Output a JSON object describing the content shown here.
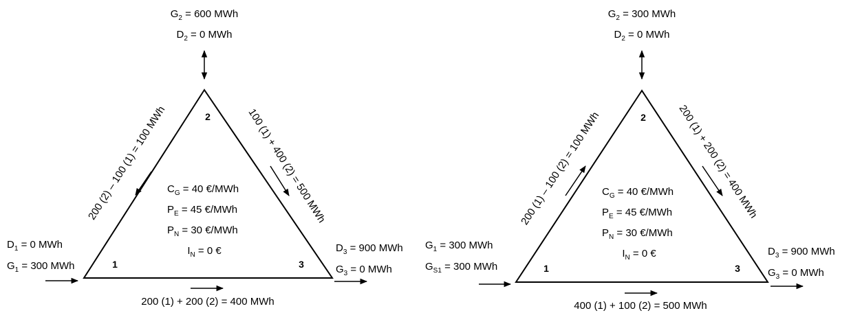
{
  "diagrams": [
    {
      "node2_top": {
        "g_main": "G",
        "g_sub": "2",
        "g_rest": " = 600 MWh",
        "d_main": "D",
        "d_sub": "2",
        "d_rest": " = 0 MWh"
      },
      "node1_left": {
        "l1_main": "D",
        "l1_sub": "1",
        "l1_rest": " = 0 MWh",
        "l2_main": "G",
        "l2_sub": "1",
        "l2_rest": " = 300 MWh"
      },
      "node3_right": {
        "l1_main": "D",
        "l1_sub": "3",
        "l1_rest": " = 900 MWh",
        "l2_main": "G",
        "l2_sub": "3",
        "l2_rest": " = 0 MWh"
      },
      "nodes": {
        "n1": "1",
        "n2": "2",
        "n3": "3"
      },
      "edge_left": "200 (2) – 100 (1) = 100 MWh",
      "edge_right": "100 (1) + 400 (2) = 500 MWh",
      "edge_bottom": "200 (1) + 200 (2) = 400 MWh",
      "center": {
        "cg_main": "C",
        "cg_sub": "G",
        "cg_rest": " = 40 €/MWh",
        "pe_main": "P",
        "pe_sub": "E",
        "pe_rest": " = 45 €/MWh",
        "pn_main": "P",
        "pn_sub": "N",
        "pn_rest": " = 30 €/MWh",
        "in_main": "I",
        "in_sub": "N",
        "in_rest": " = 0 €"
      }
    },
    {
      "node2_top": {
        "g_main": "G",
        "g_sub": "2",
        "g_rest": " = 300 MWh",
        "d_main": "D",
        "d_sub": "2",
        "d_rest": " = 0 MWh"
      },
      "node1_left": {
        "l1_main": "G",
        "l1_sub": "1",
        "l1_rest": " = 300 MWh",
        "l2_main": "G",
        "l2_sub": "S1",
        "l2_rest": " = 300 MWh"
      },
      "node3_right": {
        "l1_main": "D",
        "l1_sub": "3",
        "l1_rest": " = 900 MWh",
        "l2_main": "G",
        "l2_sub": "3",
        "l2_rest": " = 0 MWh"
      },
      "nodes": {
        "n1": "1",
        "n2": "2",
        "n3": "3"
      },
      "edge_left": "200 (1) – 100 (2) = 100 MWh",
      "edge_right": "200 (1) + 200 (2) = 400 MWh",
      "edge_bottom": "400 (1) + 100 (2) = 500 MWh",
      "center": {
        "cg_main": "C",
        "cg_sub": "G",
        "cg_rest": " = 40 €/MWh",
        "pe_main": "P",
        "pe_sub": "E",
        "pe_rest": " = 45 €/MWh",
        "pn_main": "P",
        "pn_sub": "N",
        "pn_rest": " = 30 €/MWh",
        "in_main": "I",
        "in_sub": "N",
        "in_rest": " = 0 €"
      }
    }
  ]
}
